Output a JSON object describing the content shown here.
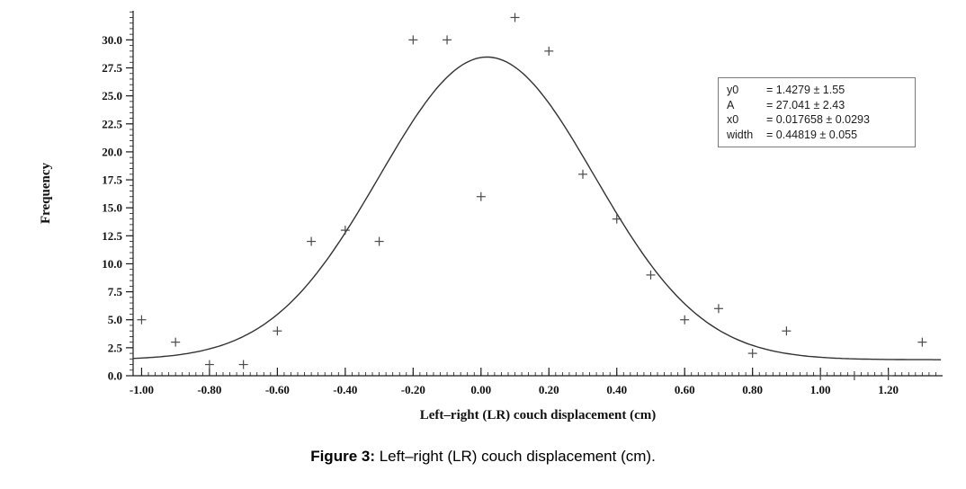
{
  "figure": {
    "caption_label": "Figure 3:",
    "caption_text": " Left–right (LR) couch displacement (cm)."
  },
  "chart_data": {
    "type": "scatter",
    "title": "",
    "xlabel": "Left–right (LR) couch displacement (cm)",
    "ylabel": "Frequency",
    "xlim": [
      -1.025,
      1.36
    ],
    "ylim": [
      0,
      32.6
    ],
    "x_ticks": [
      -1.0,
      -0.8,
      -0.6,
      -0.4,
      -0.2,
      0.0,
      0.2,
      0.4,
      0.6,
      0.8,
      1.0,
      1.2
    ],
    "y_ticks": [
      0,
      2.5,
      5,
      7.5,
      10,
      12.5,
      15,
      17.5,
      20,
      22.5,
      25,
      27.5,
      30
    ],
    "x_minor_step": 0.02,
    "y_minor_step": 0.5,
    "grid": false,
    "marker": "plus",
    "points": [
      [
        -1.0,
        5
      ],
      [
        -0.9,
        3
      ],
      [
        -0.8,
        1
      ],
      [
        -0.7,
        1
      ],
      [
        -0.6,
        4
      ],
      [
        -0.5,
        12
      ],
      [
        -0.4,
        13
      ],
      [
        -0.3,
        12
      ],
      [
        -0.2,
        30
      ],
      [
        -0.1,
        30
      ],
      [
        0.0,
        16
      ],
      [
        0.1,
        32
      ],
      [
        0.2,
        29
      ],
      [
        0.3,
        18
      ],
      [
        0.4,
        14
      ],
      [
        0.5,
        9
      ],
      [
        0.6,
        5
      ],
      [
        0.7,
        6
      ],
      [
        0.8,
        2
      ],
      [
        0.9,
        4
      ],
      [
        1.0,
        0
      ],
      [
        1.1,
        0
      ],
      [
        1.2,
        0
      ],
      [
        1.3,
        3
      ]
    ],
    "fit": {
      "model": "gaussian",
      "y0": 1.4279,
      "A": 27.041,
      "x0": 0.017658,
      "width": 0.44819
    },
    "legend": {
      "position": "upper-right",
      "rows": [
        {
          "name": "y0",
          "value": "= 1.4279 ± 1.55"
        },
        {
          "name": "A",
          "value": "= 27.041 ± 2.43"
        },
        {
          "name": "x0",
          "value": "= 0.017658 ± 0.0293"
        },
        {
          "name": "width",
          "value": "= 0.44819 ± 0.055"
        }
      ]
    },
    "colors": {
      "axis": "#1a1a1a",
      "curve": "#333333",
      "marker": "#4a4a4a",
      "background": "#ffffff"
    }
  }
}
